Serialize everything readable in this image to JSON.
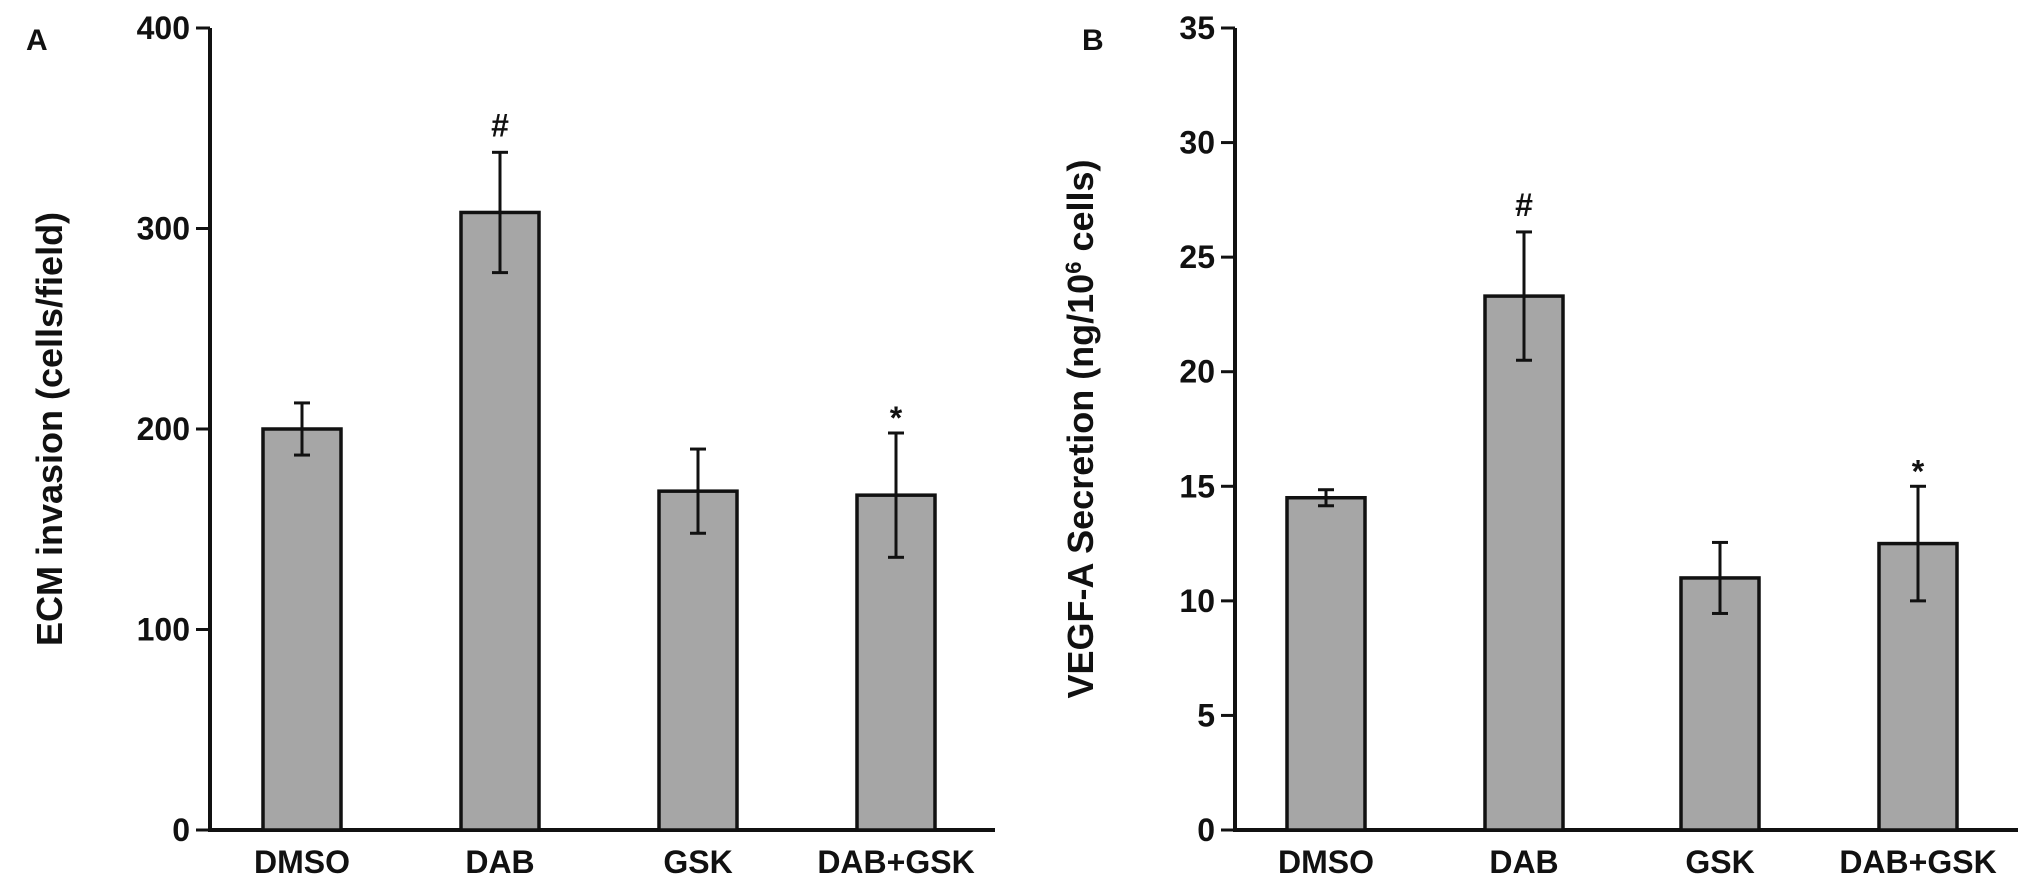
{
  "colors": {
    "bar_fill": "#a6a6a6",
    "stroke": "#111111",
    "background": "#ffffff"
  },
  "chart_data": [
    {
      "panel": "A",
      "type": "bar",
      "title": "",
      "xlabel": "",
      "ylabel": "ECM invasion (cells/field)",
      "categories": [
        "DMSO",
        "DAB",
        "GSK",
        "DAB+GSK"
      ],
      "values": [
        200,
        308,
        169,
        167
      ],
      "error": [
        13,
        30,
        21,
        31
      ],
      "annotations": [
        "",
        "#",
        "",
        "*"
      ],
      "ylim": [
        0,
        400
      ],
      "yticks": [
        0,
        100,
        200,
        300,
        400
      ],
      "grid": false,
      "legend": "none"
    },
    {
      "panel": "B",
      "type": "bar",
      "title": "",
      "xlabel": "",
      "ylabel": "VEGF-A Secretion (ng/10⁶ cells)",
      "ylabel_parts": {
        "before": "VEGF-A Secretion (ng/10",
        "sup": "6",
        "after": " cells)"
      },
      "categories": [
        "DMSO",
        "DAB",
        "GSK",
        "DAB+GSK"
      ],
      "values": [
        14.5,
        23.3,
        11.0,
        12.5
      ],
      "error": [
        0.35,
        2.8,
        1.55,
        2.5
      ],
      "annotations": [
        "",
        "#",
        "",
        "*"
      ],
      "ylim": [
        0,
        35
      ],
      "yticks": [
        0,
        5,
        10,
        15,
        20,
        25,
        30,
        35
      ],
      "grid": false,
      "legend": "none"
    }
  ]
}
